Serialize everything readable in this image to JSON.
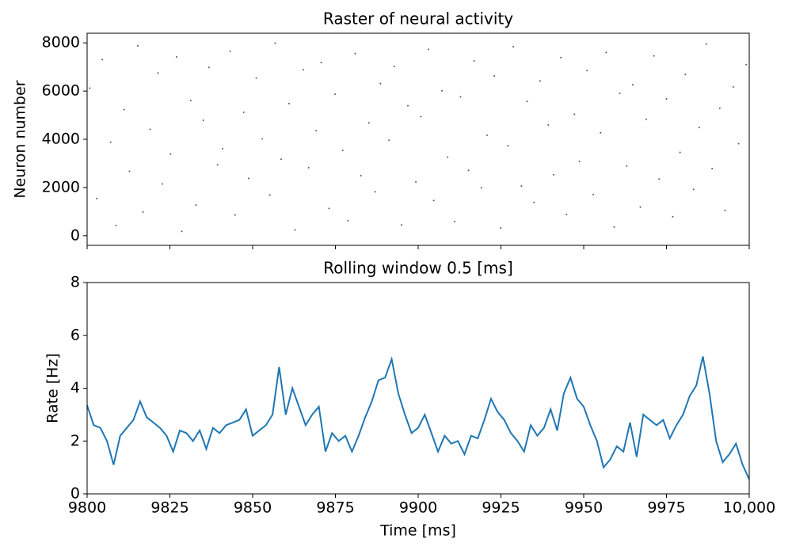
{
  "chart_data": [
    {
      "type": "scatter",
      "title": "Raster of neural activity",
      "ylabel": "Neuron number",
      "color": "#555555",
      "x": [
        9800.8,
        9802.9,
        9804.6,
        9807.1,
        9808.7,
        9811.2,
        9812.8,
        9815.3,
        9816.9,
        9819.0,
        9821.4,
        9822.7,
        9825.2,
        9827.0,
        9828.6,
        9831.3,
        9832.9,
        9835.1,
        9836.8,
        9839.4,
        9840.9,
        9843.2,
        9844.7,
        9847.3,
        9848.8,
        9851.1,
        9852.9,
        9855.2,
        9856.8,
        9858.6,
        9861.0,
        9862.8,
        9865.3,
        9866.9,
        9869.2,
        9870.7,
        9873.1,
        9874.9,
        9877.2,
        9878.8,
        9881.0,
        9882.7,
        9885.1,
        9887.0,
        9888.6,
        9891.2,
        9892.8,
        9895.0,
        9896.9,
        9899.3,
        9900.8,
        9903.1,
        9904.7,
        9907.2,
        9908.9,
        9911.0,
        9912.8,
        9915.2,
        9916.9,
        9919.1,
        9920.8,
        9923.0,
        9924.9,
        9927.1,
        9928.7,
        9931.2,
        9932.9,
        9935.0,
        9936.8,
        9939.3,
        9940.9,
        9943.1,
        9944.8,
        9947.2,
        9948.7,
        9951.0,
        9952.9,
        9955.1,
        9956.8,
        9959.2,
        9960.9,
        9963.0,
        9964.8,
        9967.1,
        9968.9,
        9971.2,
        9972.8,
        9975.0,
        9976.9,
        9979.1,
        9980.7,
        9983.2,
        9984.9,
        9987.0,
        9988.8,
        9991.1,
        9992.7,
        9995.2,
        9996.8,
        9999.1
      ],
      "y": [
        6120,
        1540,
        7310,
        3880,
        420,
        5230,
        2670,
        7880,
        980,
        4410,
        6750,
        2150,
        3390,
        7420,
        180,
        5610,
        1270,
        4790,
        6980,
        2940,
        3610,
        7650,
        860,
        5120,
        2380,
        6540,
        4020,
        1690,
        7990,
        3170,
        5480,
        240,
        6890,
        2820,
        4360,
        7180,
        1130,
        5870,
        3540,
        620,
        7560,
        2490,
        4680,
        1820,
        6310,
        3960,
        7020,
        450,
        5390,
        2230,
        4940,
        7730,
        1460,
        6010,
        3260,
        590,
        5760,
        2710,
        7250,
        1990,
        4170,
        6630,
        320,
        3730,
        7840,
        2060,
        5570,
        1380,
        6420,
        4590,
        2530,
        7390,
        880,
        5040,
        3080,
        6850,
        1710,
        4270,
        7600,
        360,
        5910,
        2890,
        6260,
        1190,
        4830,
        7460,
        2350,
        5680,
        790,
        3460,
        6690,
        1920,
        4490,
        7950,
        2780,
        5290,
        1050,
        6170,
        3820,
        7100
      ],
      "xlim": [
        9800,
        10000
      ],
      "xticks": [
        9800,
        9825,
        9850,
        9875,
        9900,
        9925,
        9950,
        9975,
        10000
      ],
      "ylim": [
        -400,
        8400
      ],
      "yticks": [
        0,
        2000,
        4000,
        6000,
        8000
      ]
    },
    {
      "type": "line",
      "title": "Rolling window 0.5 [ms]",
      "xlabel": "Time [ms]",
      "ylabel": "Rate [Hz]",
      "color": "#1f77b4",
      "x": [
        9800,
        9802,
        9804,
        9806,
        9808,
        9810,
        9812,
        9814,
        9816,
        9818,
        9820,
        9822,
        9824,
        9826,
        9828,
        9830,
        9832,
        9834,
        9836,
        9838,
        9840,
        9842,
        9844,
        9846,
        9848,
        9850,
        9852,
        9854,
        9856,
        9858,
        9860,
        9862,
        9864,
        9866,
        9868,
        9870,
        9872,
        9874,
        9876,
        9878,
        9880,
        9882,
        9884,
        9886,
        9888,
        9890,
        9892,
        9894,
        9896,
        9898,
        9900,
        9902,
        9904,
        9906,
        9908,
        9910,
        9912,
        9914,
        9916,
        9918,
        9920,
        9922,
        9924,
        9926,
        9928,
        9930,
        9932,
        9934,
        9936,
        9938,
        9940,
        9942,
        9944,
        9946,
        9948,
        9950,
        9952,
        9954,
        9956,
        9958,
        9960,
        9962,
        9964,
        9966,
        9968,
        9970,
        9972,
        9974,
        9976,
        9978,
        9980,
        9982,
        9984,
        9986,
        9988,
        9990,
        9992,
        9994,
        9996,
        9998,
        10000
      ],
      "values": [
        3.35,
        2.6,
        2.5,
        2.0,
        1.1,
        2.2,
        2.5,
        2.8,
        3.5,
        2.9,
        2.7,
        2.5,
        2.2,
        1.6,
        2.4,
        2.3,
        2.0,
        2.4,
        1.7,
        2.5,
        2.3,
        2.6,
        2.7,
        2.8,
        3.2,
        2.2,
        2.4,
        2.6,
        3.0,
        4.8,
        3.0,
        4.0,
        3.3,
        2.6,
        3.0,
        3.3,
        1.6,
        2.3,
        2.0,
        2.2,
        1.6,
        2.2,
        2.9,
        3.5,
        4.3,
        4.4,
        5.1,
        3.8,
        3.0,
        2.3,
        2.5,
        3.0,
        2.3,
        1.6,
        2.2,
        1.9,
        2.0,
        1.5,
        2.2,
        2.1,
        2.8,
        3.6,
        3.1,
        2.8,
        2.3,
        2.0,
        1.6,
        2.6,
        2.2,
        2.5,
        3.2,
        2.4,
        3.8,
        4.4,
        3.6,
        3.3,
        2.6,
        2.0,
        1.0,
        1.3,
        1.8,
        1.6,
        2.7,
        1.4,
        3.0,
        2.8,
        2.6,
        2.8,
        2.1,
        2.6,
        3.0,
        3.7,
        4.1,
        5.2,
        3.8,
        2.0,
        1.2,
        1.5,
        1.9,
        1.1,
        0.55
      ],
      "xlim": [
        9800,
        10000
      ],
      "xticks": [
        9800,
        9825,
        9850,
        9875,
        9900,
        9925,
        9950,
        9975,
        {
          "value": 10000,
          "label": "10,000"
        }
      ],
      "ylim": [
        0,
        8
      ],
      "yticks": [
        0,
        2,
        4,
        6,
        8
      ]
    }
  ]
}
